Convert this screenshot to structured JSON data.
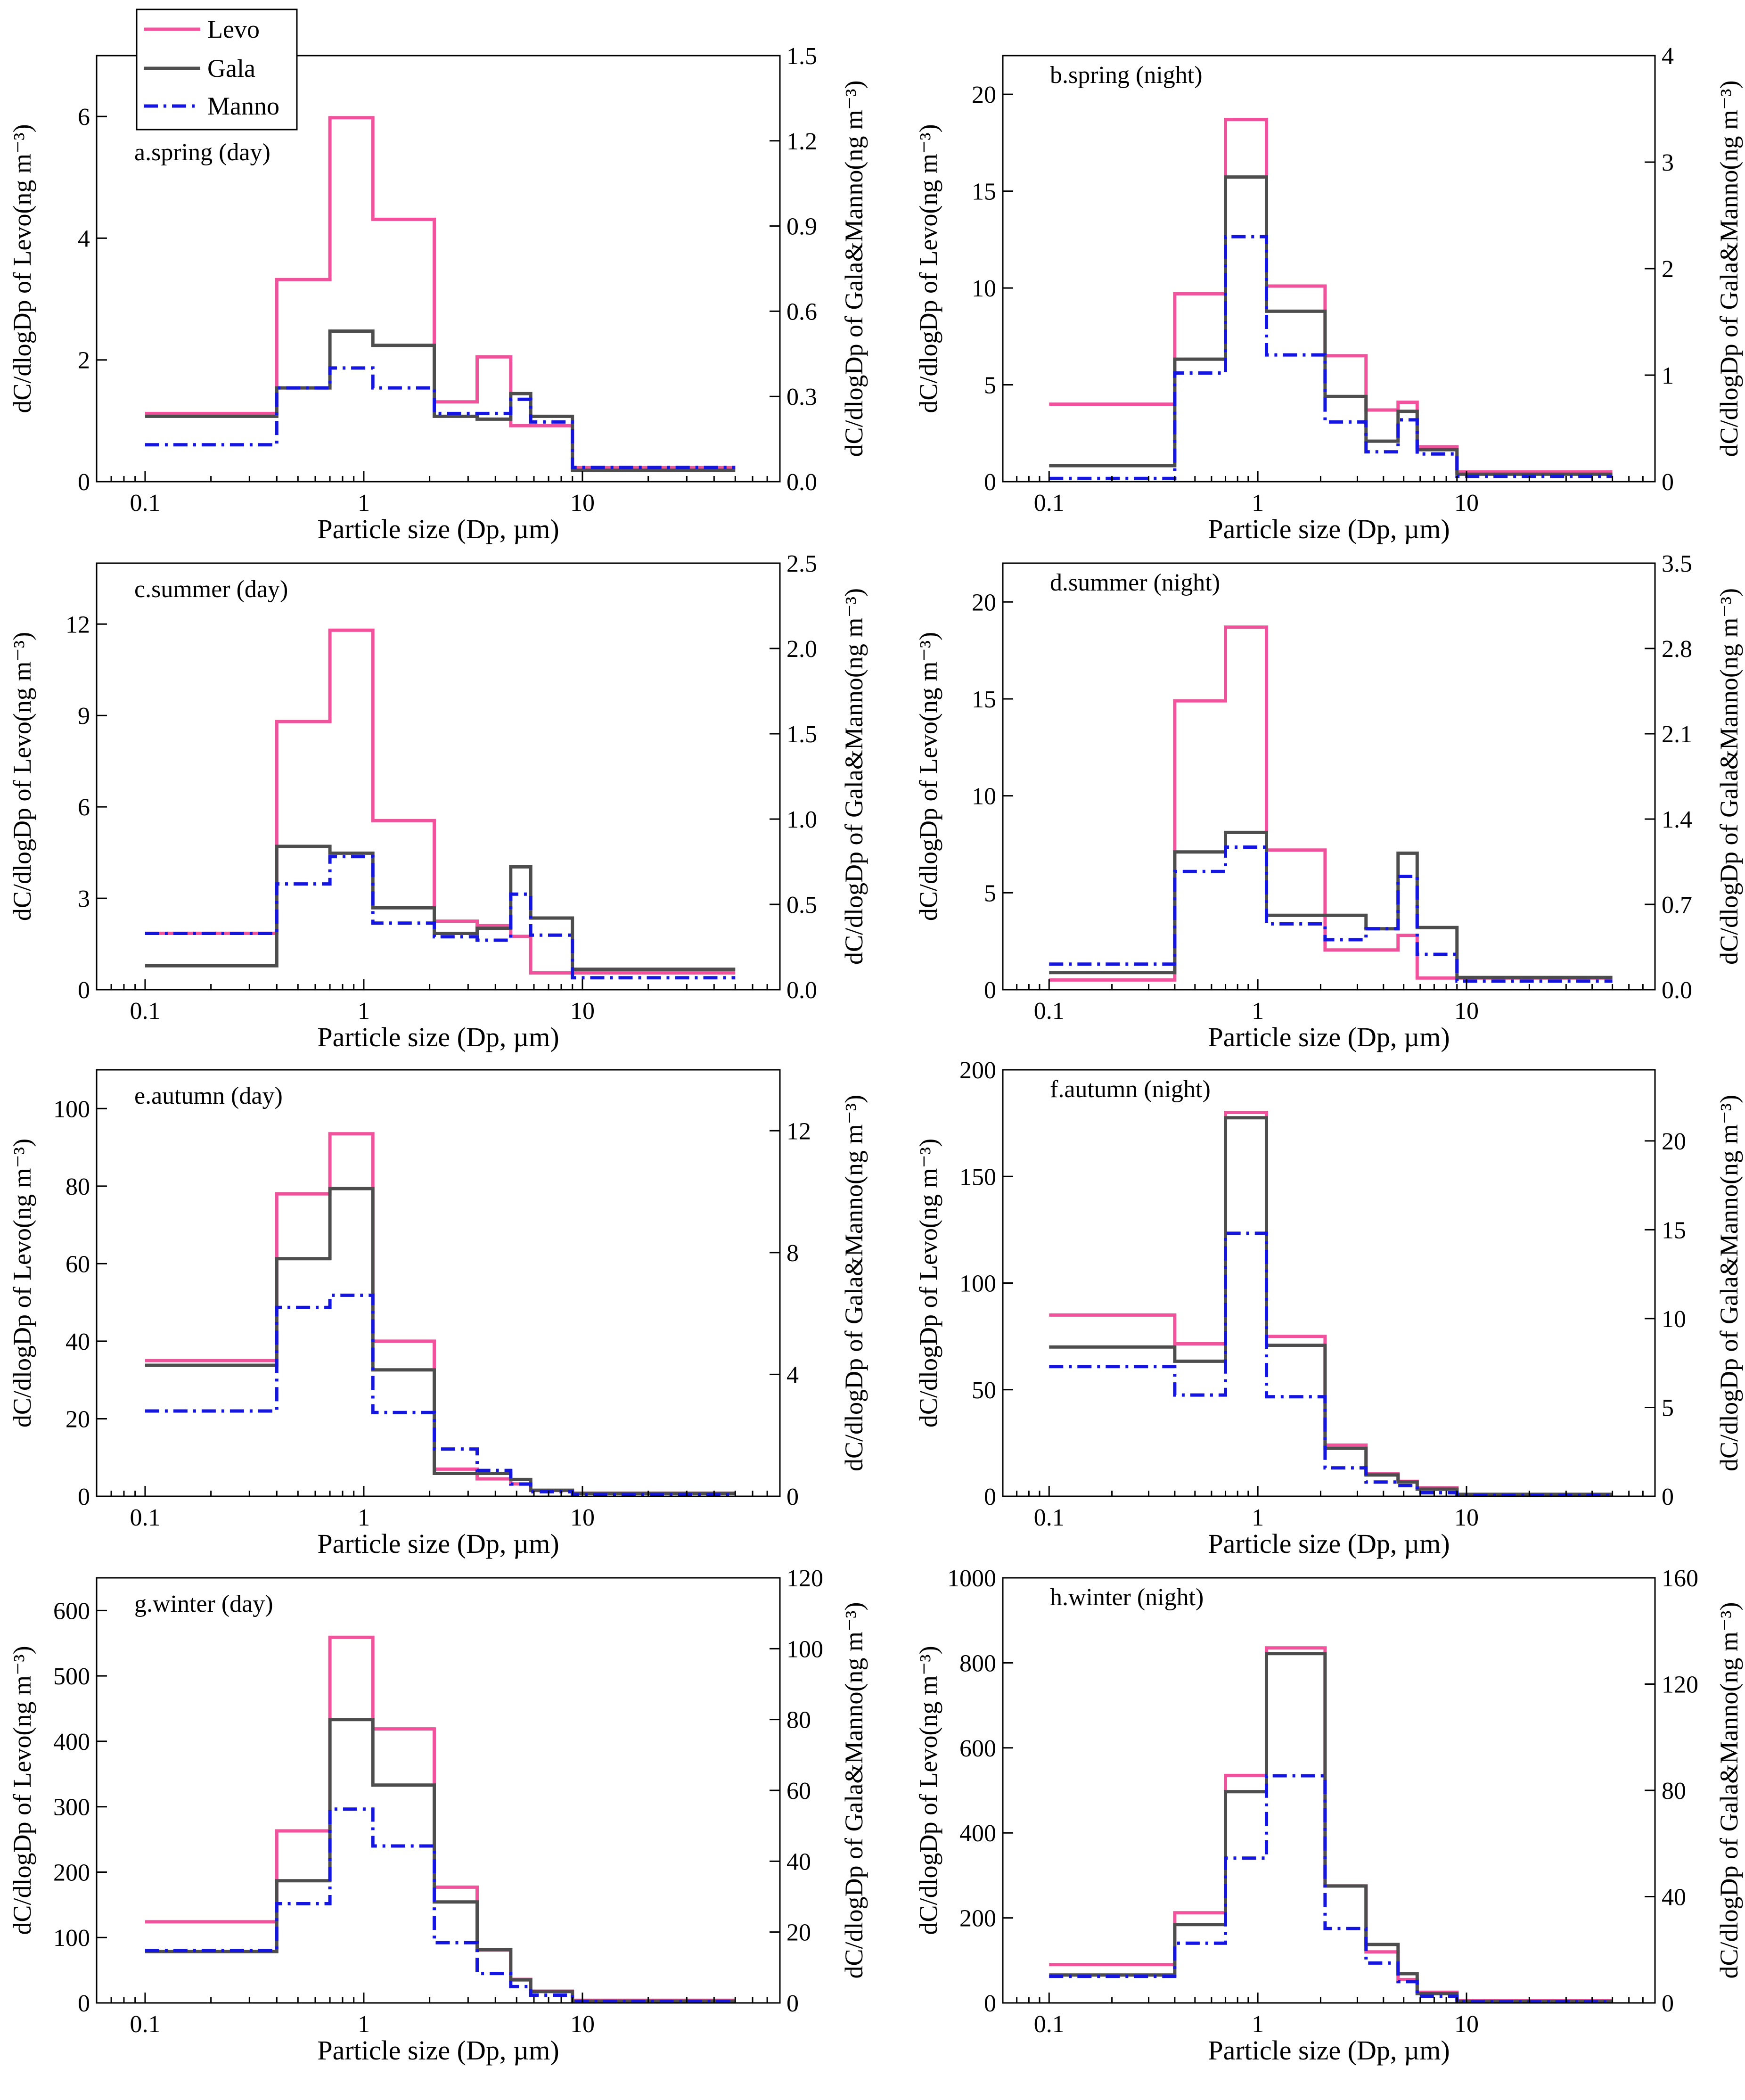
{
  "figure": {
    "legend": {
      "levo": "Levo",
      "gala": "Gala",
      "manno": "Manno"
    },
    "colors": {
      "levo": "#F0529C",
      "gala": "#4D4D4D",
      "manno": "#1515E0"
    }
  },
  "chart_data": [
    {
      "type": "line",
      "title": "a.spring (day)",
      "xlabel": "Particle size (Dp, µm)",
      "ylabel": "dC/dlogDp of Levo(ng m⁻³)",
      "ylabel2": "dC/dlogDp of Gala&Manno(ng m⁻³)",
      "xlim": [
        0.06,
        80
      ],
      "xticks": [
        0.1,
        1,
        10
      ],
      "xticklabels": [
        "0.1",
        "1",
        "10"
      ],
      "ylim": [
        0,
        7
      ],
      "yticks": [
        0,
        2,
        4,
        6
      ],
      "yticklabels": [
        "0",
        "2",
        "4",
        "6"
      ],
      "y2lim": [
        0,
        1.5
      ],
      "y2ticks": [
        0,
        0.3,
        0.6,
        0.9,
        1.2,
        1.5
      ],
      "y2ticklabels": [
        "0.0",
        "0.3",
        "0.6",
        "0.9",
        "1.2",
        "1.5"
      ],
      "bin_edges": [
        0.1,
        0.4,
        0.7,
        1.1,
        2.1,
        3.3,
        4.7,
        5.8,
        9.0,
        50
      ],
      "series": [
        {
          "name": "Levo",
          "axis": "left",
          "values": [
            1.12,
            3.32,
            5.98,
            4.31,
            1.31,
            2.05,
            0.92,
            0.92,
            0.23
          ]
        },
        {
          "name": "Gala",
          "axis": "right",
          "values": [
            0.23,
            0.33,
            0.53,
            0.48,
            0.23,
            0.22,
            0.31,
            0.23,
            0.04
          ]
        },
        {
          "name": "Manno",
          "axis": "right",
          "values": [
            0.13,
            0.33,
            0.4,
            0.33,
            0.24,
            0.24,
            0.29,
            0.21,
            0.05
          ]
        }
      ]
    },
    {
      "type": "line",
      "title": "b.spring (night)",
      "xlabel": "Particle size (Dp, µm)",
      "ylabel": "dC/dlogDp of Levo(ng m⁻³)",
      "ylabel2": "dC/dlogDp of Gala&Manno(ng m⁻³)",
      "xlim": [
        0.06,
        80
      ],
      "xticks": [
        0.1,
        1,
        10
      ],
      "xticklabels": [
        "0.1",
        "1",
        "10"
      ],
      "ylim": [
        0,
        22
      ],
      "yticks": [
        0,
        5,
        10,
        15,
        20
      ],
      "yticklabels": [
        "0",
        "5",
        "10",
        "15",
        "20"
      ],
      "y2lim": [
        0,
        4
      ],
      "y2ticks": [
        0,
        1,
        2,
        3,
        4
      ],
      "y2ticklabels": [
        "0",
        "1",
        "2",
        "3",
        "4"
      ],
      "bin_edges": [
        0.1,
        0.4,
        0.7,
        1.1,
        2.1,
        3.3,
        4.7,
        5.8,
        9.0,
        50
      ],
      "series": [
        {
          "name": "Levo",
          "axis": "left",
          "values": [
            4.0,
            9.7,
            18.7,
            10.1,
            6.5,
            3.7,
            4.1,
            1.8,
            0.5
          ]
        },
        {
          "name": "Gala",
          "axis": "right",
          "values": [
            0.15,
            1.15,
            2.86,
            1.6,
            0.8,
            0.38,
            0.66,
            0.3,
            0.07
          ]
        },
        {
          "name": "Manno",
          "axis": "right",
          "values": [
            0.03,
            1.02,
            2.3,
            1.19,
            0.56,
            0.28,
            0.58,
            0.26,
            0.05
          ]
        }
      ]
    },
    {
      "type": "line",
      "title": "c.summer (day)",
      "xlabel": "Particle size (Dp, µm)",
      "ylabel": "dC/dlogDp of Levo(ng m⁻³)",
      "ylabel2": "dC/dlogDp of Gala&Manno(ng m⁻³)",
      "xlim": [
        0.06,
        80
      ],
      "xticks": [
        0.1,
        1,
        10
      ],
      "xticklabels": [
        "0.1",
        "1",
        "10"
      ],
      "ylim": [
        0,
        14
      ],
      "yticks": [
        0,
        3,
        6,
        9,
        12
      ],
      "yticklabels": [
        "0",
        "3",
        "6",
        "9",
        "12"
      ],
      "y2lim": [
        0,
        2.5
      ],
      "y2ticks": [
        0,
        0.5,
        1.0,
        1.5,
        2.0,
        2.5
      ],
      "y2ticklabels": [
        "0.0",
        "0.5",
        "1.0",
        "1.5",
        "2.0",
        "2.5"
      ],
      "bin_edges": [
        0.1,
        0.4,
        0.7,
        1.1,
        2.1,
        3.3,
        4.7,
        5.8,
        9.0,
        50
      ],
      "series": [
        {
          "name": "Levo",
          "axis": "left",
          "values": [
            1.85,
            8.8,
            11.8,
            5.55,
            2.25,
            2.1,
            1.75,
            0.55,
            0.55
          ]
        },
        {
          "name": "Gala",
          "axis": "right",
          "values": [
            0.14,
            0.84,
            0.8,
            0.48,
            0.33,
            0.36,
            0.72,
            0.42,
            0.12
          ]
        },
        {
          "name": "Manno",
          "axis": "right",
          "values": [
            0.33,
            0.62,
            0.78,
            0.39,
            0.31,
            0.29,
            0.56,
            0.32,
            0.07
          ]
        }
      ]
    },
    {
      "type": "line",
      "title": "d.summer (night)",
      "xlabel": "Particle size (Dp, µm)",
      "ylabel": "dC/dlogDp of Levo(ng m⁻³)",
      "ylabel2": "dC/dlogDp of Gala&Manno(ng m⁻³)",
      "xlim": [
        0.06,
        80
      ],
      "xticks": [
        0.1,
        1,
        10
      ],
      "xticklabels": [
        "0.1",
        "1",
        "10"
      ],
      "ylim": [
        0,
        22
      ],
      "yticks": [
        0,
        5,
        10,
        15,
        20
      ],
      "yticklabels": [
        "0",
        "5",
        "10",
        "15",
        "20"
      ],
      "y2lim": [
        0,
        3.5
      ],
      "y2ticks": [
        0,
        0.7,
        1.4,
        2.1,
        2.8,
        3.5
      ],
      "y2ticklabels": [
        "0.0",
        "0.7",
        "1.4",
        "2.1",
        "2.8",
        "3.5"
      ],
      "bin_edges": [
        0.1,
        0.4,
        0.7,
        1.1,
        2.1,
        3.3,
        4.7,
        5.8,
        9.0,
        50
      ],
      "series": [
        {
          "name": "Levo",
          "axis": "left",
          "values": [
            0.5,
            14.9,
            18.7,
            7.2,
            2.05,
            2.05,
            2.8,
            0.6,
            0.6
          ]
        },
        {
          "name": "Gala",
          "axis": "right",
          "values": [
            0.14,
            1.13,
            1.29,
            0.61,
            0.61,
            0.5,
            1.12,
            0.51,
            0.1
          ]
        },
        {
          "name": "Manno",
          "axis": "right",
          "values": [
            0.21,
            0.97,
            1.17,
            0.54,
            0.41,
            0.5,
            0.93,
            0.29,
            0.07
          ]
        }
      ]
    },
    {
      "type": "line",
      "title": "e.autumn (day)",
      "xlabel": "Particle size (Dp, µm)",
      "ylabel": "dC/dlogDp of Levo(ng m⁻³)",
      "ylabel2": "dC/dlogDp of Gala&Manno(ng m⁻³)",
      "xlim": [
        0.06,
        80
      ],
      "xticks": [
        0.1,
        1,
        10
      ],
      "xticklabels": [
        "0.1",
        "1",
        "10"
      ],
      "ylim": [
        0,
        110
      ],
      "yticks": [
        0,
        20,
        40,
        60,
        80,
        100
      ],
      "yticklabels": [
        "0",
        "20",
        "40",
        "60",
        "80",
        "100"
      ],
      "y2lim": [
        0,
        14
      ],
      "y2ticks": [
        0,
        4,
        8,
        12
      ],
      "y2ticklabels": [
        "0",
        "4",
        "8",
        "12"
      ],
      "bin_edges": [
        0.1,
        0.4,
        0.7,
        1.1,
        2.1,
        3.3,
        4.7,
        5.8,
        9.0,
        50
      ],
      "series": [
        {
          "name": "Levo",
          "axis": "left",
          "values": [
            35,
            78,
            93.5,
            40,
            7,
            4.5,
            3.2,
            1.5,
            0.8
          ]
        },
        {
          "name": "Gala",
          "axis": "right",
          "values": [
            4.3,
            7.8,
            10.1,
            4.15,
            0.75,
            0.75,
            0.55,
            0.2,
            0.1
          ]
        },
        {
          "name": "Manno",
          "axis": "right",
          "values": [
            2.8,
            6.2,
            6.6,
            2.75,
            1.55,
            0.85,
            0.4,
            0.15,
            0.05
          ]
        }
      ]
    },
    {
      "type": "line",
      "title": "f.autumn (night)",
      "xlabel": "Particle size (Dp, µm)",
      "ylabel": "dC/dlogDp of Levo(ng m⁻³)",
      "ylabel2": "dC/dlogDp of Gala&Manno(ng m⁻³)",
      "xlim": [
        0.06,
        80
      ],
      "xticks": [
        0.1,
        1,
        10
      ],
      "xticklabels": [
        "0.1",
        "1",
        "10"
      ],
      "ylim": [
        0,
        200
      ],
      "yticks": [
        0,
        50,
        100,
        150,
        200
      ],
      "yticklabels": [
        "0",
        "50",
        "100",
        "150",
        "200"
      ],
      "y2lim": [
        0,
        24
      ],
      "y2ticks": [
        0,
        5,
        10,
        15,
        20
      ],
      "y2ticklabels": [
        "0",
        "5",
        "10",
        "15",
        "20"
      ],
      "bin_edges": [
        0.1,
        0.4,
        0.7,
        1.1,
        2.1,
        3.3,
        4.7,
        5.8,
        9.0,
        50
      ],
      "series": [
        {
          "name": "Levo",
          "axis": "left",
          "values": [
            85,
            71.5,
            180,
            75,
            24,
            10.5,
            7,
            4,
            1
          ]
        },
        {
          "name": "Gala",
          "axis": "right",
          "values": [
            8.4,
            7.6,
            21.3,
            8.5,
            2.7,
            1.2,
            0.8,
            0.4,
            0.1
          ]
        },
        {
          "name": "Manno",
          "axis": "right",
          "values": [
            7.3,
            5.7,
            14.8,
            5.6,
            1.6,
            0.8,
            0.6,
            0.2,
            0.05
          ]
        }
      ]
    },
    {
      "type": "line",
      "title": "g.winter (day)",
      "xlabel": "Particle size (Dp, µm)",
      "ylabel": "dC/dlogDp of Levo(ng m⁻³)",
      "ylabel2": "dC/dlogDp of Gala&Manno(ng m⁻³)",
      "xlim": [
        0.06,
        80
      ],
      "xticks": [
        0.1,
        1,
        10
      ],
      "xticklabels": [
        "0.1",
        "1",
        "10"
      ],
      "ylim": [
        0,
        650
      ],
      "yticks": [
        0,
        100,
        200,
        300,
        400,
        500,
        600
      ],
      "yticklabels": [
        "0",
        "100",
        "200",
        "300",
        "400",
        "500",
        "600"
      ],
      "y2lim": [
        0,
        120
      ],
      "y2ticks": [
        0,
        20,
        40,
        60,
        80,
        100,
        120
      ],
      "y2ticklabels": [
        "0",
        "20",
        "40",
        "60",
        "80",
        "100",
        "120"
      ],
      "bin_edges": [
        0.1,
        0.4,
        0.7,
        1.1,
        2.1,
        3.3,
        4.7,
        5.8,
        9.0,
        50
      ],
      "series": [
        {
          "name": "Levo",
          "axis": "left",
          "values": [
            124,
            263,
            559,
            419,
            177,
            81,
            36,
            18,
            4
          ]
        },
        {
          "name": "Gala",
          "axis": "right",
          "values": [
            14.5,
            34.5,
            80,
            61.5,
            28.5,
            15,
            6.5,
            3.2,
            0.5
          ]
        },
        {
          "name": "Manno",
          "axis": "right",
          "values": [
            14.8,
            28,
            54.7,
            44.3,
            17,
            8.3,
            4.6,
            2.2,
            0.4
          ]
        }
      ]
    },
    {
      "type": "line",
      "title": "h.winter (night)",
      "xlabel": "Particle size (Dp, µm)",
      "ylabel": "dC/dlogDp of Levo(ng m⁻³)",
      "ylabel2": "dC/dlogDp of Gala&Manno(ng m⁻³)",
      "xlim": [
        0.06,
        80
      ],
      "xticks": [
        0.1,
        1,
        10
      ],
      "xticklabels": [
        "0.1",
        "1",
        "10"
      ],
      "ylim": [
        0,
        1000
      ],
      "yticks": [
        0,
        200,
        400,
        600,
        800,
        1000
      ],
      "yticklabels": [
        "0",
        "200",
        "400",
        "600",
        "800",
        "1000"
      ],
      "y2lim": [
        0,
        160
      ],
      "y2ticks": [
        0,
        40,
        80,
        120,
        160
      ],
      "y2ticklabels": [
        "0",
        "40",
        "80",
        "120",
        "160"
      ],
      "bin_edges": [
        0.1,
        0.4,
        0.7,
        1.1,
        2.1,
        3.3,
        4.7,
        5.8,
        9.0,
        50
      ],
      "series": [
        {
          "name": "Levo",
          "axis": "left",
          "values": [
            90,
            212,
            535,
            835,
            275,
            120,
            55,
            25,
            5
          ]
        },
        {
          "name": "Gala",
          "axis": "right",
          "values": [
            10.5,
            29.5,
            79.5,
            131.5,
            44,
            22,
            11,
            3.5,
            0.6
          ]
        },
        {
          "name": "Manno",
          "axis": "right",
          "values": [
            10,
            22.5,
            54.5,
            85.5,
            28,
            15,
            8,
            2.5,
            0.4
          ]
        }
      ]
    }
  ]
}
